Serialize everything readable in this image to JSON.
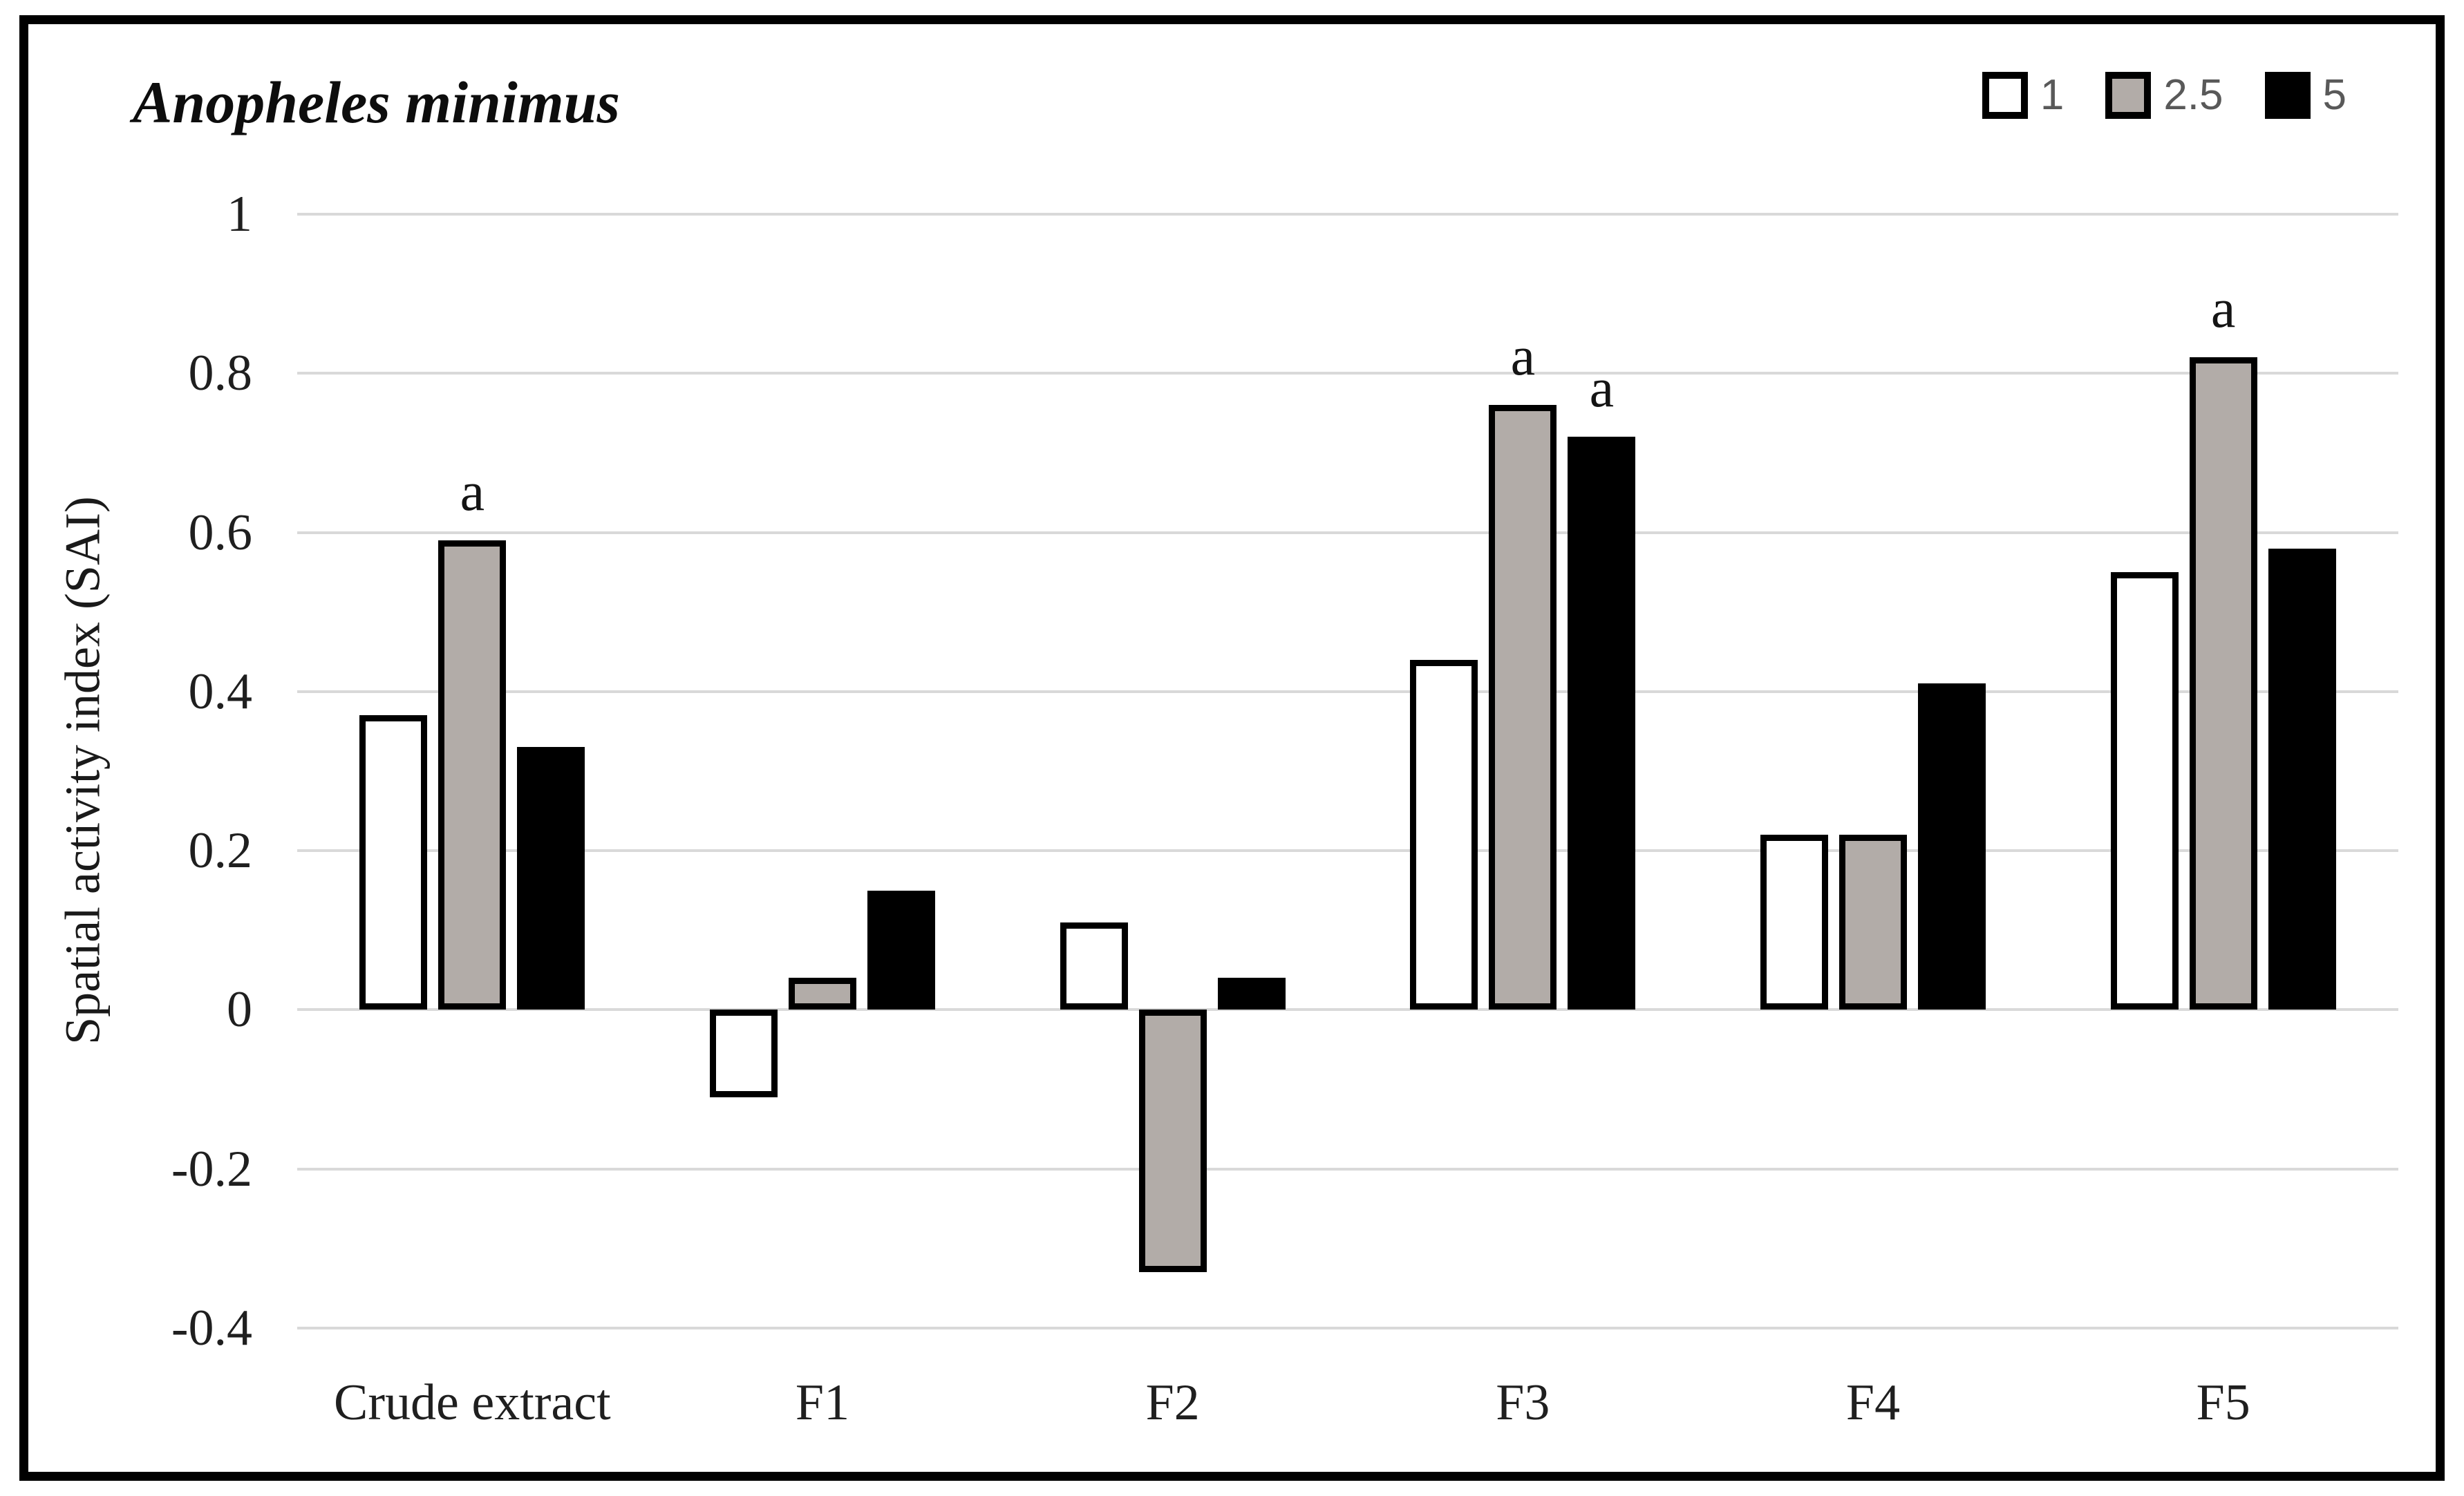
{
  "figure": {
    "title": "Anopheles minimus",
    "y_axis_title": "Spatial activity index (SAI)"
  },
  "legend": {
    "position": "top-right",
    "items": [
      {
        "label": "1",
        "fill": "#ffffff"
      },
      {
        "label": "2.5",
        "fill": "#b2aca8"
      },
      {
        "label": "5",
        "fill": "#000000"
      }
    ]
  },
  "chart_data": {
    "type": "bar",
    "title": "Anopheles minimus",
    "xlabel": "",
    "ylabel": "Spatial activity index (SAI)",
    "categories": [
      "Crude extract",
      "F1",
      "F2",
      "F3",
      "F4",
      "F5"
    ],
    "series": [
      {
        "name": "1",
        "fill": "#ffffff",
        "values": [
          0.37,
          -0.11,
          0.11,
          0.44,
          0.22,
          0.55
        ]
      },
      {
        "name": "2.5",
        "fill": "#b2aca8",
        "values": [
          0.59,
          0.04,
          -0.33,
          0.76,
          0.22,
          0.82
        ]
      },
      {
        "name": "5",
        "fill": "#000000",
        "values": [
          0.33,
          0.15,
          0.04,
          0.72,
          0.41,
          0.58
        ]
      }
    ],
    "annotations": [
      {
        "category_index": 0,
        "series_index": 1,
        "text": "a"
      },
      {
        "category_index": 3,
        "series_index": 1,
        "text": "a"
      },
      {
        "category_index": 3,
        "series_index": 2,
        "text": "a"
      },
      {
        "category_index": 5,
        "series_index": 1,
        "text": "a"
      }
    ],
    "ylim": [
      -0.4,
      1.0
    ],
    "ytick_values": [
      1,
      0.8,
      0.6,
      0.4,
      0.2,
      0,
      -0.2,
      -0.4
    ],
    "ytick_labels": [
      "1",
      "0.8",
      "0.6",
      "0.4",
      "0.2",
      "0",
      "-0.2",
      "-0.4"
    ],
    "grid": true,
    "gridline_color": "#d9d9d9",
    "bar_outline": "#000000",
    "legend_position": "top-right"
  }
}
